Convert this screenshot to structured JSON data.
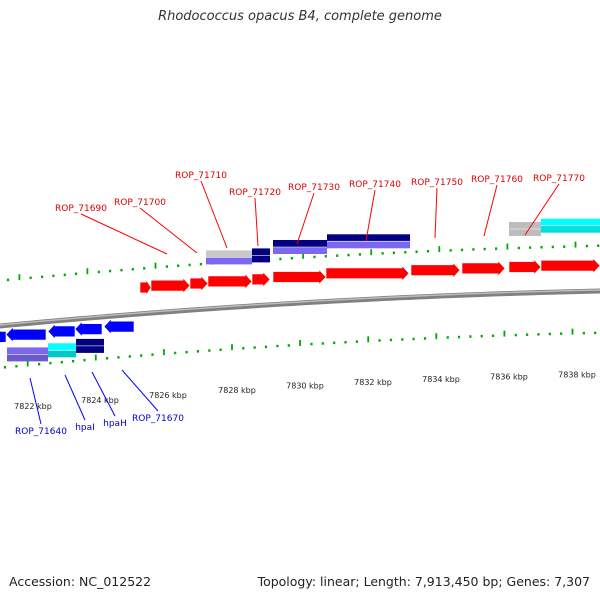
{
  "title": "Rhodococcus opacus B4, complete genome",
  "footer": {
    "accession": "Accession: NC_012522",
    "summary": "Topology: linear; Length: 7,913,450 bp; Genes: 7,307"
  },
  "colors": {
    "gene_red": "#ff0000",
    "gene_navy": "#000080",
    "gene_slate": "#6a5acd",
    "gene_blue": "#0000ff",
    "gene_cyan": "#00ffff",
    "gene_gray": "#bbbbbb",
    "tick_green": "#00aa00",
    "backbone": "#777777",
    "label_red": "#dd0000",
    "label_blue": "#0000cc"
  },
  "scale_labels": [
    "7822 kbp",
    "7824 kbp",
    "7826 kbp",
    "7828 kbp",
    "7830 kbp",
    "7832 kbp",
    "7834 kbp",
    "7836 kbp",
    "7838 kbp"
  ],
  "forward_gene_labels": [
    "ROP_71690",
    "ROP_71700",
    "ROP_71710",
    "ROP_71720",
    "ROP_71730",
    "ROP_71740",
    "ROP_71750",
    "ROP_71760",
    "ROP_71770"
  ],
  "reverse_gene_labels": [
    "ROP_71640",
    "hpaI",
    "hpaH",
    "ROP_71670"
  ]
}
